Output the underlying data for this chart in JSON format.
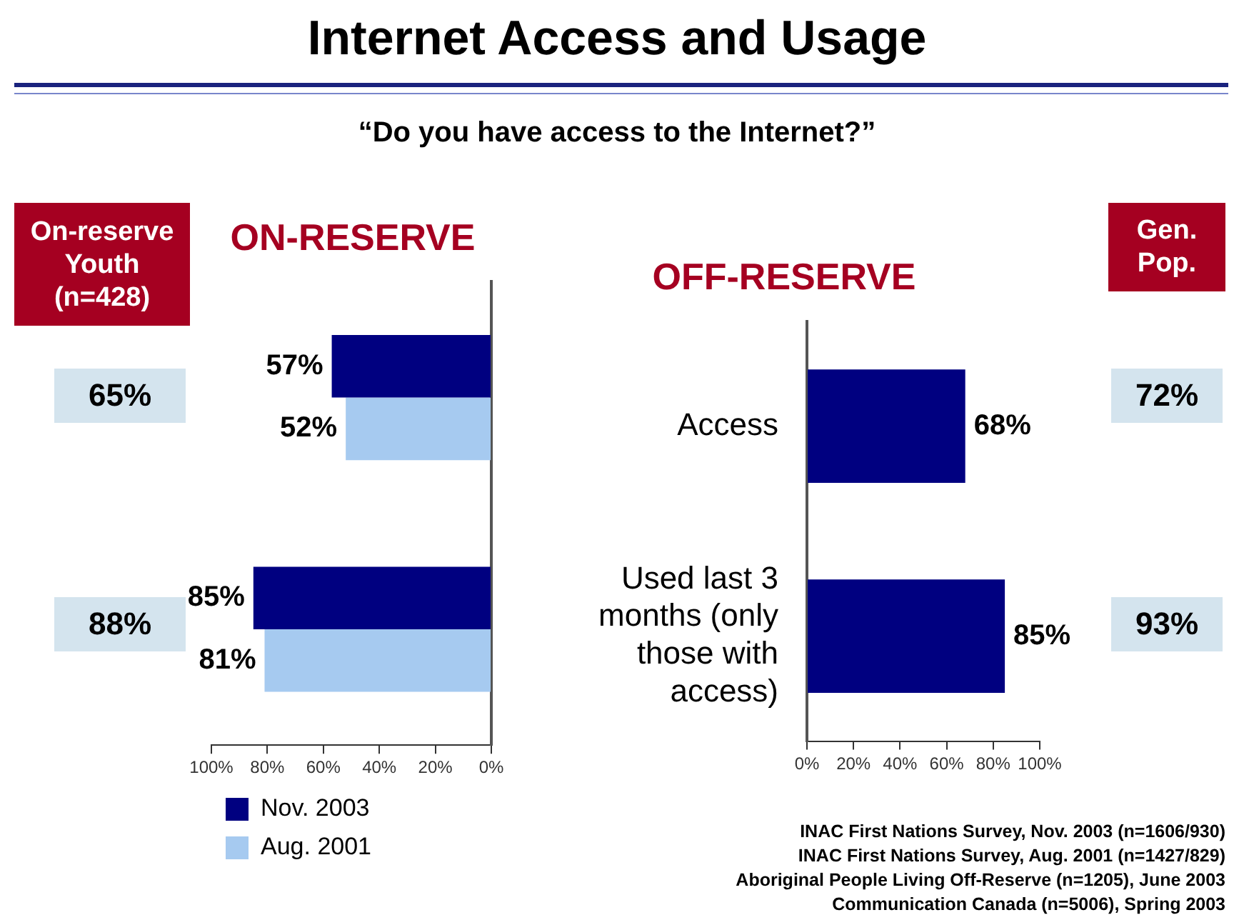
{
  "chart_data": [
    {
      "type": "other",
      "title": "Internet Access and Usage",
      "subtitle": "“Do you have access to the Internet?”"
    },
    {
      "type": "other",
      "title": "On-reserve Youth (n=428)",
      "annotations": [
        "65%",
        "88%"
      ]
    },
    {
      "type": "bar",
      "orientation": "horizontal",
      "title": "ON-RESERVE",
      "categories": [
        null,
        null
      ],
      "series": [
        {
          "name": "Nov. 2003",
          "color": "#000080",
          "values": [
            57,
            85
          ],
          "value_labels": [
            "57%",
            "85%"
          ]
        },
        {
          "name": "Aug. 2001",
          "color": "#a6caf0",
          "values": [
            52,
            81
          ],
          "value_labels": [
            "52%",
            "81%"
          ]
        }
      ],
      "xlim": [
        100,
        0
      ],
      "xticks": [
        {
          "value": 100,
          "label": "100%"
        },
        {
          "value": 80,
          "label": "80%"
        },
        {
          "value": 60,
          "label": "60%"
        },
        {
          "value": 40,
          "label": "40%"
        },
        {
          "value": 20,
          "label": "20%"
        },
        {
          "value": 0,
          "label": "0%"
        }
      ],
      "grid": false,
      "legend": "bottom",
      "tick_labels": "x"
    },
    {
      "type": "bar",
      "orientation": "horizontal",
      "title": "OFF-RESERVE",
      "categories": [
        "Access",
        "Used last 3 months (only those with access)"
      ],
      "series": [
        {
          "color": "#000080",
          "values": [
            68,
            85
          ],
          "value_labels": [
            "68%",
            "85%"
          ]
        }
      ],
      "xlim": [
        0,
        100
      ],
      "xticks": [
        {
          "value": 0,
          "label": "0%"
        },
        {
          "value": 20,
          "label": "20%"
        },
        {
          "value": 40,
          "label": "40%"
        },
        {
          "value": 60,
          "label": "60%"
        },
        {
          "value": 80,
          "label": "80%"
        },
        {
          "value": 100,
          "label": "100%"
        }
      ],
      "grid": false,
      "legend": false,
      "annotations": [
        "INAC First Nations Survey, Nov. 2003 (n=1606/930)",
        "INAC First Nations Survey, Aug. 2001 (n=1427/829)",
        "Aboriginal People Living Off-Reserve (n=1205), June 2003",
        "Communication Canada (n=5006), Spring 2003"
      ]
    },
    {
      "type": "other",
      "title": "Gen. Pop.",
      "annotations": [
        "72%",
        "93%"
      ]
    }
  ]
}
